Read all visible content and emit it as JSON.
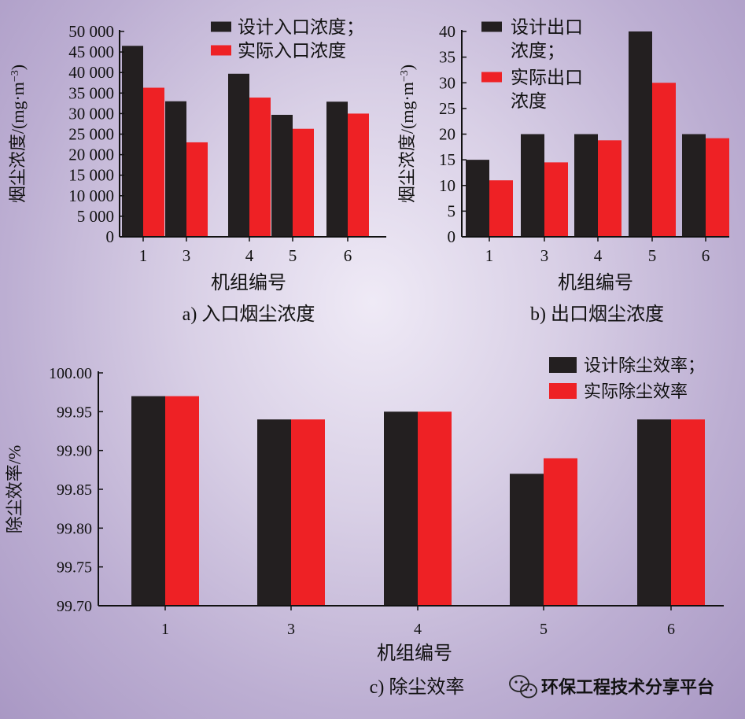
{
  "colors": {
    "design": "#231f20",
    "actual": "#ee2125",
    "axis": "#111111"
  },
  "chart_data": [
    {
      "id": "a",
      "type": "bar",
      "caption": "a) 入口烟尘浓度",
      "xlabel": "机组编号",
      "ylabel": "烟尘浓度/(mg·m",
      "ylabel_sup": "−3",
      "ylabel_close": ")",
      "categories": [
        "1",
        "3",
        "4",
        "5",
        "6"
      ],
      "series": [
        {
          "name": "设计入口浓度；",
          "values": [
            46500,
            33000,
            39700,
            29700,
            32900
          ]
        },
        {
          "name": "实际入口浓度",
          "values": [
            36300,
            23000,
            33900,
            26300,
            30000
          ]
        }
      ],
      "ylim": [
        0,
        50000
      ],
      "yticks": [
        0,
        5000,
        10000,
        15000,
        20000,
        25000,
        30000,
        35000,
        40000,
        45000,
        50000
      ],
      "ytick_labels": [
        "0",
        "5 000",
        "10 000",
        "15 000",
        "20 000",
        "25 000",
        "30 000",
        "35 000",
        "40 000",
        "45 000",
        "50 000"
      ],
      "legend_position": "top-right"
    },
    {
      "id": "b",
      "type": "bar",
      "caption": "b) 出口烟尘浓度",
      "xlabel": "机组编号",
      "ylabel": "烟尘浓度/(mg·m",
      "ylabel_sup": "−3",
      "ylabel_close": ")",
      "categories": [
        "1",
        "3",
        "4",
        "5",
        "6"
      ],
      "series": [
        {
          "name": "设计出口\n浓度；",
          "values": [
            15,
            20,
            20,
            40,
            20
          ]
        },
        {
          "name": "实际出口\n浓度",
          "values": [
            11,
            14.5,
            18.8,
            30,
            19.2
          ]
        }
      ],
      "ylim": [
        0,
        40
      ],
      "yticks": [
        0,
        5,
        10,
        15,
        20,
        25,
        30,
        35,
        40
      ],
      "ytick_labels": [
        "0",
        "5",
        "10",
        "15",
        "20",
        "25",
        "30",
        "35",
        "40"
      ],
      "legend_position": "top-left"
    },
    {
      "id": "c",
      "type": "bar",
      "caption": "c) 除尘效率",
      "xlabel": "机组编号",
      "ylabel": "除尘效率/%",
      "categories": [
        "1",
        "3",
        "4",
        "5",
        "6"
      ],
      "series": [
        {
          "name": "设计除尘效率；",
          "values": [
            99.97,
            99.94,
            99.95,
            99.87,
            99.94
          ]
        },
        {
          "name": "实际除尘效率",
          "values": [
            99.97,
            99.94,
            99.95,
            99.89,
            99.94
          ]
        }
      ],
      "ylim": [
        99.7,
        100.0
      ],
      "yticks": [
        99.7,
        99.75,
        99.8,
        99.85,
        99.9,
        99.95,
        100.0
      ],
      "ytick_labels": [
        "99.70",
        "99.75",
        "99.80",
        "99.85",
        "99.90",
        "99.95",
        "100.00"
      ],
      "legend_position": "top-right"
    }
  ],
  "watermark": {
    "text": "环保工程技术分享平台",
    "icon": "wechat-icon"
  }
}
